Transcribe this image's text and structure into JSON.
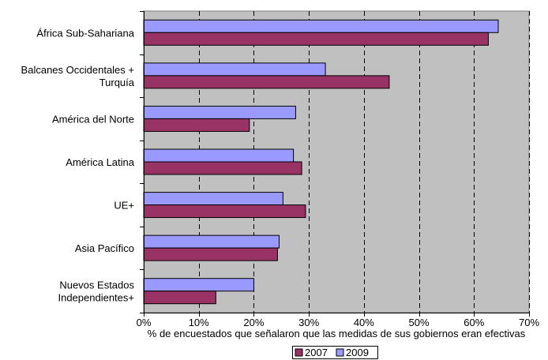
{
  "chart_data": {
    "type": "bar",
    "orientation": "horizontal",
    "categories": [
      [
        "África Sub-Sahariana"
      ],
      [
        "Balcanes Occidentales +",
        "Turquía"
      ],
      [
        "América del Norte"
      ],
      [
        "América Latina"
      ],
      [
        "UE+"
      ],
      [
        "Asia Pacífico"
      ],
      [
        "Nuevos Estados",
        "Independientes+"
      ]
    ],
    "series": [
      {
        "name": "2009",
        "color": "#9999ff",
        "values": [
          64.4,
          33.0,
          27.6,
          27.2,
          25.3,
          24.6,
          20.0
        ]
      },
      {
        "name": "2007",
        "color": "#993366",
        "values": [
          62.6,
          44.6,
          19.2,
          28.7,
          29.4,
          24.3,
          13.1
        ]
      }
    ],
    "xlabel": "% de encuestados que señalaron que las medidas de sus gobiernos eran efectivas",
    "xlim": [
      0,
      70
    ],
    "ticks": [
      "0%",
      "10%",
      "20%",
      "30%",
      "40%",
      "50%",
      "60%",
      "70%"
    ],
    "tick_values": [
      0,
      10,
      20,
      30,
      40,
      50,
      60,
      70
    ],
    "plot_background": "#c0c0c0",
    "gridlines": "dashed-vertical",
    "legend": {
      "placement": "bottom",
      "entries": [
        {
          "name": "2007",
          "color": "#993366"
        },
        {
          "name": "2009",
          "color": "#9999ff"
        }
      ]
    }
  }
}
